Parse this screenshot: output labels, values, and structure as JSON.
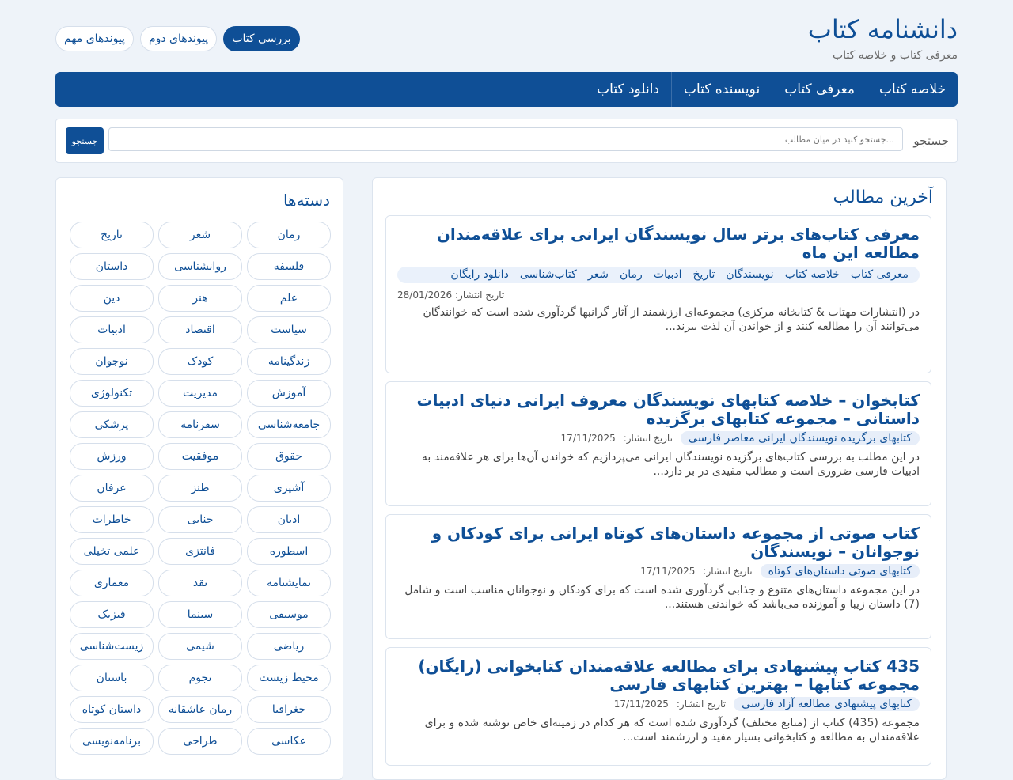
{
  "header": {
    "site_title": "دانشنامه کتاب",
    "site_subtitle": "معرفی کتاب و خلاصه کتاب",
    "top_links": [
      {
        "label": "پیوندهای مهم"
      },
      {
        "label": "پیوندهای دوم"
      },
      {
        "label": "بررسی کتاب"
      }
    ]
  },
  "nav": {
    "items": [
      {
        "label": "خلاصه کتاب"
      },
      {
        "label": "معرفی کتاب"
      },
      {
        "label": "نویسنده کتاب"
      },
      {
        "label": "دانلود کتاب"
      }
    ]
  },
  "search": {
    "label": "جستجو",
    "placeholder": "...جستجو کنید در میان مطالب",
    "button_label": "جستجو"
  },
  "sidebar": {
    "title": "دسته‌ها",
    "tags": [
      {
        "label": "رمان"
      },
      {
        "label": "شعر"
      },
      {
        "label": "تاریخ"
      },
      {
        "label": "فلسفه"
      },
      {
        "label": "روانشناسی"
      },
      {
        "label": "داستان"
      },
      {
        "label": "علم"
      },
      {
        "label": "هنر"
      },
      {
        "label": "دین"
      },
      {
        "label": "سیاست"
      },
      {
        "label": "اقتصاد"
      },
      {
        "label": "ادبیات"
      },
      {
        "label": "زندگینامه"
      },
      {
        "label": "کودک"
      },
      {
        "label": "نوجوان"
      },
      {
        "label": "آموزش"
      },
      {
        "label": "مدیریت"
      },
      {
        "label": "تکنولوژی"
      },
      {
        "label": "جامعه‌شناسی"
      },
      {
        "label": "سفرنامه"
      },
      {
        "label": "پزشکی"
      },
      {
        "label": "حقوق"
      },
      {
        "label": "موفقیت"
      },
      {
        "label": "ورزش"
      },
      {
        "label": "آشپزی"
      },
      {
        "label": "طنز"
      },
      {
        "label": "عرفان"
      },
      {
        "label": "ادیان"
      },
      {
        "label": "جنایی"
      },
      {
        "label": "خاطرات"
      },
      {
        "label": "اسطوره"
      },
      {
        "label": "فانتزی"
      },
      {
        "label": "علمی تخیلی"
      },
      {
        "label": "نمایشنامه"
      },
      {
        "label": "نقد"
      },
      {
        "label": "معماری"
      },
      {
        "label": "موسیقی"
      },
      {
        "label": "سینما"
      },
      {
        "label": "فیزیک"
      },
      {
        "label": "ریاضی"
      },
      {
        "label": "شیمی"
      },
      {
        "label": "زیست‌شناسی"
      },
      {
        "label": "محیط زیست"
      },
      {
        "label": "نجوم"
      },
      {
        "label": "باستان"
      },
      {
        "label": "جغرافیا"
      },
      {
        "label": "رمان عاشقانه"
      },
      {
        "label": "داستان کوتاه"
      },
      {
        "label": "عکاسی"
      },
      {
        "label": "طراحی"
      },
      {
        "label": "برنامه‌نویسی"
      }
    ]
  },
  "main": {
    "title": "آخرین مطالب",
    "posts": [
      {
        "title": "معرفی کتاب‌های برتر سال نویسندگان ایرانی برای علاقه‌مندان مطالعه این ماه",
        "categories": [
          "معرفی کتاب",
          "خلاصه کتاب",
          "نویسندگان",
          "تاریخ",
          "ادبیات",
          "رمان",
          "شعر",
          "کتاب‌شناسی",
          "دانلود رایگان"
        ],
        "date_label": "تاریخ انتشار:",
        "date": "28/01/2026",
        "excerpt": "در (انتشارات مهتاب & کتابخانه مرکزی) مجموعه‌ای ارزشمند از آثار گرانبها گردآوری شده است که خوانندگان می‌توانند آن را مطالعه کنند و از خواندن آن لذت ببرند..."
      },
      {
        "title": "کتابخوان – خلاصه کتابهای نویسندگان معروف ایرانی دنیای ادبیات داستانی – مجموعه کتابهای برگزیده",
        "category": "کتابهای برگزیده نویسندگان ایرانی معاصر فارسی",
        "date_label": "تاریخ انتشار:",
        "date": "17/11/2025",
        "excerpt": "در این مطلب به بررسی کتاب‌های برگزیده نویسندگان ایرانی می‌پردازیم که خواندن آن‌ها برای هر علاقه‌مند به ادبیات فارسی ضروری است و مطالب مفیدی در بر دارد..."
      },
      {
        "title": "کتاب صوتی از مجموعه داستان‌های کوتاه ایرانی برای کودکان و نوجوانان – نویسندگان",
        "category": "کتابهای صوتی داستان‌های کوتاه",
        "date_label": "تاریخ انتشار:",
        "date": "17/11/2025",
        "excerpt": "در این مجموعه داستان‌های متنوع و جذابی گردآوری شده است که برای کودکان و نوجوانان مناسب است و شامل (7) داستان زیبا و آموزنده می‌باشد که خواندنی هستند..."
      },
      {
        "title": "435 کتاب پیشنهادی برای مطالعه علاقه‌مندان کتابخوانی (رایگان) مجموعه کتابها – بهترین کتابهای فارسی",
        "category": "کتابهای پیشنهادی مطالعه آزاد فارسی",
        "date_label": "تاریخ انتشار:",
        "date": "17/11/2025",
        "excerpt": "مجموعه (435) کتاب از (منابع مختلف) گردآوری شده است که هر کدام در زمینه‌ای خاص نوشته شده و برای علاقه‌مندان به مطالعه و کتابخوانی بسیار مفید و ارزشمند است..."
      }
    ]
  },
  "colors": {
    "brand": "#0f4f96",
    "page_bg": "#eef3f9",
    "tag_border": "#d6dfeb"
  }
}
